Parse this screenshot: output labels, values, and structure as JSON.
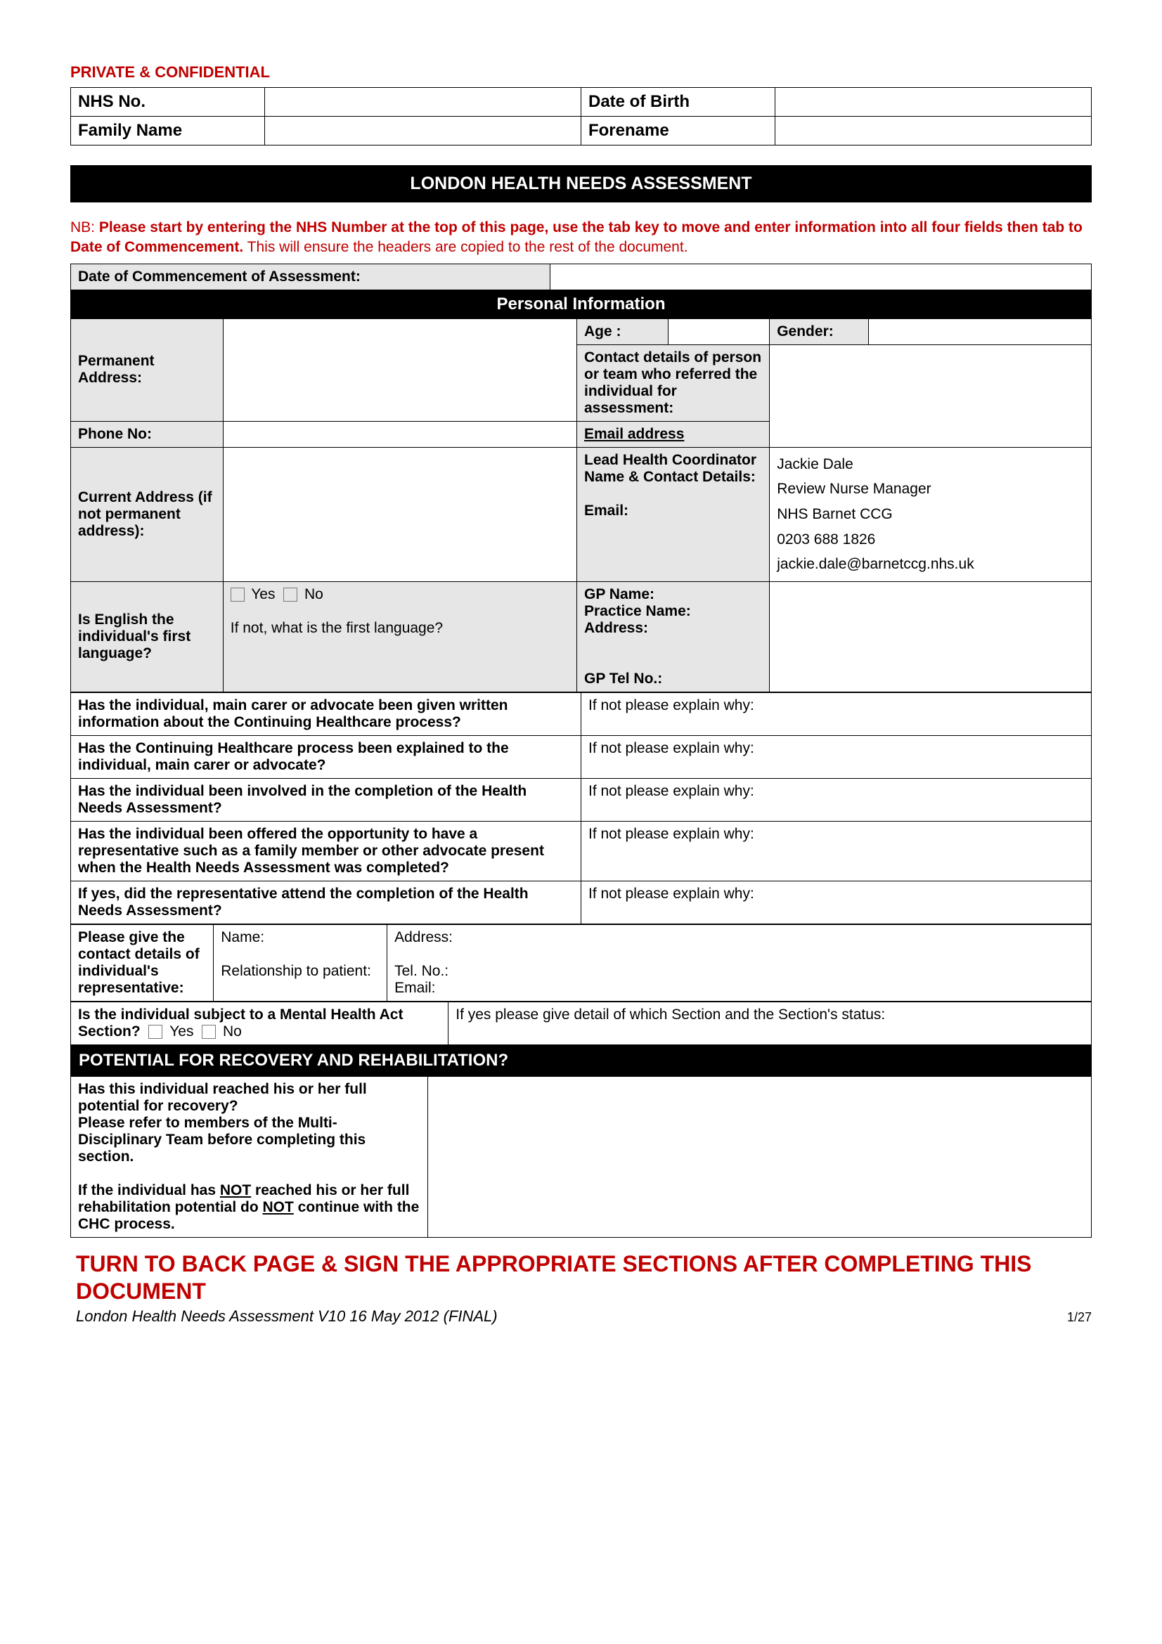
{
  "confidential": "PRIVATE & CONFIDENTIAL",
  "header": {
    "nhs_no_label": "NHS No.",
    "dob_label": "Date of Birth",
    "family_name_label": "Family Name",
    "forename_label": "Forename",
    "nhs_no": "",
    "dob": "",
    "family_name": "",
    "forename": ""
  },
  "title": "LONDON HEALTH NEEDS ASSESSMENT",
  "nb": {
    "prefix": "NB: ",
    "bold": "Please start by entering the NHS Number at the top of this page, use the tab key to move and enter information into all four fields then tab to Date of Commencement.",
    "rest": "  This will ensure the headers are copied to the rest of the document."
  },
  "commencement_label": "Date of Commencement of Assessment:",
  "commencement_value": "",
  "personal_info_title": "Personal Information",
  "pi": {
    "permanent_address_label": "Permanent Address:",
    "age_label": "Age :",
    "age": "",
    "gender_label": "Gender:",
    "gender": "",
    "referrer_label": "Contact details of person or team who referred the individual for assessment:",
    "phone_label": "Phone No:",
    "email_label": "Email address",
    "current_address_label": "Current Address (if not permanent address):",
    "lead_health_label": "Lead Health Coordinator Name & Contact Details:",
    "lead_email_label": "Email:",
    "lead_health_name": "Jackie Dale",
    "lead_health_role": "Review Nurse Manager",
    "lead_health_org": "NHS Barnet CCG",
    "lead_health_phone": "0203 688 1826",
    "lead_health_email": "jackie.dale@barnetccg.nhs.uk",
    "english_label": "Is English the individual's first language?",
    "yes": "Yes",
    "no": "No",
    "ifnot_lang": "If not, what is the first language?",
    "gp_name_label": "GP Name:",
    "practice_name_label": "Practice Name:",
    "address_label": "Address:",
    "gp_tel_label": "GP Tel No.:"
  },
  "questions": {
    "q1": "Has the individual, main carer or advocate been given written information about the Continuing Healthcare process?",
    "q2": "Has the Continuing Healthcare process been explained to the individual, main carer or advocate?",
    "q3": "Has the individual been involved in the completion of the Health Needs Assessment?",
    "q4": "Has the individual been offered the opportunity to have a representative such as a family member or other advocate present when the Health Needs Assessment was completed?",
    "q5": "If yes, did the representative attend the completion of the Health Needs Assessment?",
    "explain": "If not please explain why:"
  },
  "rep": {
    "intro": "Please give the contact details of individual's representative:",
    "name": "Name:",
    "relationship": "Relationship to patient:",
    "address": "Address:",
    "tel": "Tel. No.:",
    "email": "Email:"
  },
  "mha": {
    "label": "Is the individual subject to a  Mental Health Act Section?",
    "yes": "Yes",
    "no": "No",
    "explain": "If yes please give detail of which Section and the Section's status:"
  },
  "recovery": {
    "title": "POTENTIAL FOR RECOVERY AND REHABILITATION?",
    "para1": "Has this individual reached his or her full potential for recovery?\nPlease refer to members of the Multi-Disciplinary Team before completing this section.",
    "para2a": "If the individual has ",
    "not": "NOT",
    "para2b": " reached his or her full rehabilitation potential do ",
    "para2c": " continue with the CHC process."
  },
  "footer": {
    "red": "TURN TO BACK PAGE & SIGN THE APPROPRIATE SECTIONS AFTER COMPLETING THIS DOCUMENT",
    "meta": "London Health Needs Assessment V10 16 May 2012 (FINAL)",
    "page": "1/27"
  }
}
